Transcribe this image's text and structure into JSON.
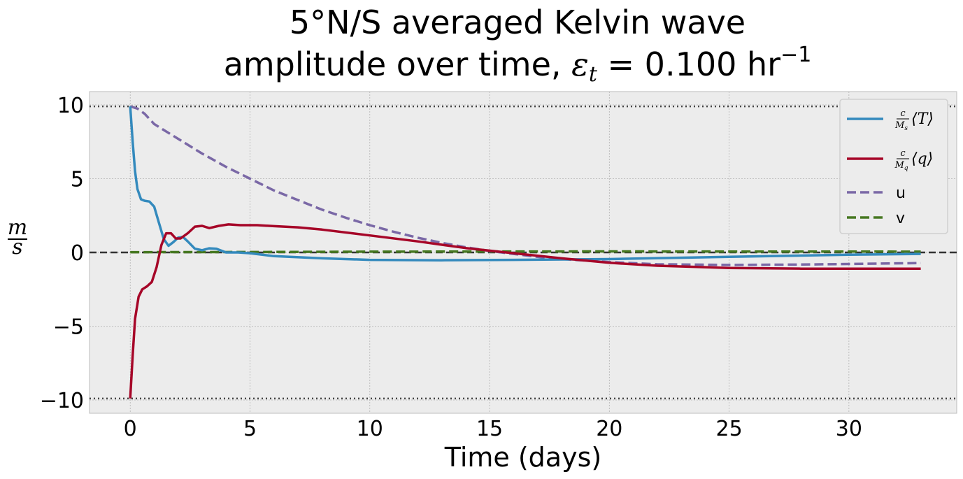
{
  "chart_data": {
    "type": "line",
    "title_line1": "5°N/S averaged Kelvin wave",
    "title_line2_prefix": "amplitude over time, ",
    "title_eps": "ε",
    "title_eps_sub": "t",
    "title_line2_value": " = 0.100 hr",
    "title_exp": "−1",
    "xlabel": "Time (days)",
    "ylabel_num": "m",
    "ylabel_den": "s",
    "xlim": [
      -1.7,
      34.5
    ],
    "ylim": [
      -10.9,
      10.9
    ],
    "xticks": [
      0,
      5,
      10,
      15,
      20,
      25,
      30
    ],
    "xtick_labels": [
      "0",
      "5",
      "10",
      "15",
      "20",
      "25",
      "30"
    ],
    "yticks": [
      -10,
      -5,
      0,
      5,
      10
    ],
    "ytick_labels": [
      "−10",
      "−5",
      "0",
      "5",
      "10"
    ],
    "grid": true,
    "legend_position": "upper right",
    "reference_lines": [
      {
        "y": 9.9,
        "style": "dotted",
        "color": "#444444"
      },
      {
        "y": -9.9,
        "style": "dotted",
        "color": "#444444"
      },
      {
        "y": 0,
        "style": "dashed",
        "color": "#333333"
      }
    ],
    "series": [
      {
        "name": "c/M_s ⟨T⟩",
        "legend_num": "c",
        "legend_den": "M",
        "legend_den_sub": "s",
        "legend_var": "T",
        "color": "#348abd",
        "style": "solid",
        "points": [
          [
            0,
            9.9
          ],
          [
            0.1,
            7.5
          ],
          [
            0.2,
            5.5
          ],
          [
            0.3,
            4.3
          ],
          [
            0.45,
            3.6
          ],
          [
            0.6,
            3.5
          ],
          [
            0.8,
            3.45
          ],
          [
            1.0,
            3.1
          ],
          [
            1.2,
            2.0
          ],
          [
            1.4,
            0.9
          ],
          [
            1.6,
            0.45
          ],
          [
            1.8,
            0.7
          ],
          [
            2.0,
            1.0
          ],
          [
            2.2,
            1.05
          ],
          [
            2.4,
            0.75
          ],
          [
            2.7,
            0.25
          ],
          [
            3.0,
            0.15
          ],
          [
            3.3,
            0.28
          ],
          [
            3.6,
            0.25
          ],
          [
            4.0,
            0.0
          ],
          [
            4.5,
            0.0
          ],
          [
            5.0,
            -0.05
          ],
          [
            6.0,
            -0.25
          ],
          [
            8.0,
            -0.4
          ],
          [
            10,
            -0.5
          ],
          [
            13,
            -0.53
          ],
          [
            16,
            -0.5
          ],
          [
            20,
            -0.45
          ],
          [
            25,
            -0.3
          ],
          [
            30,
            -0.15
          ],
          [
            33,
            -0.1
          ]
        ]
      },
      {
        "name": "c/M_q ⟨q⟩",
        "legend_num": "c",
        "legend_den": "M",
        "legend_den_sub": "q",
        "legend_var": "q",
        "color": "#a60628",
        "style": "solid",
        "points": [
          [
            0,
            -9.9
          ],
          [
            0.1,
            -7.0
          ],
          [
            0.2,
            -4.5
          ],
          [
            0.35,
            -3.0
          ],
          [
            0.5,
            -2.5
          ],
          [
            0.7,
            -2.3
          ],
          [
            0.9,
            -2.0
          ],
          [
            1.1,
            -1.0
          ],
          [
            1.3,
            0.5
          ],
          [
            1.5,
            1.3
          ],
          [
            1.7,
            1.3
          ],
          [
            1.9,
            0.95
          ],
          [
            2.1,
            0.95
          ],
          [
            2.4,
            1.3
          ],
          [
            2.7,
            1.75
          ],
          [
            3.0,
            1.8
          ],
          [
            3.3,
            1.65
          ],
          [
            3.7,
            1.8
          ],
          [
            4.1,
            1.9
          ],
          [
            4.6,
            1.85
          ],
          [
            5.3,
            1.85
          ],
          [
            6.0,
            1.78
          ],
          [
            7,
            1.7
          ],
          [
            8,
            1.55
          ],
          [
            10,
            1.15
          ],
          [
            12,
            0.75
          ],
          [
            14,
            0.3
          ],
          [
            16,
            -0.05
          ],
          [
            18,
            -0.4
          ],
          [
            20,
            -0.7
          ],
          [
            22,
            -0.9
          ],
          [
            25,
            -1.05
          ],
          [
            28,
            -1.1
          ],
          [
            30,
            -1.1
          ],
          [
            33,
            -1.1
          ]
        ]
      },
      {
        "name": "u",
        "color": "#7a68a6",
        "style": "dashed",
        "points": [
          [
            0,
            9.9
          ],
          [
            0.3,
            9.75
          ],
          [
            0.6,
            9.4
          ],
          [
            1.0,
            8.7
          ],
          [
            1.5,
            8.2
          ],
          [
            2,
            7.7
          ],
          [
            3,
            6.7
          ],
          [
            4,
            5.8
          ],
          [
            5,
            5.0
          ],
          [
            6,
            4.2
          ],
          [
            7,
            3.55
          ],
          [
            8,
            2.9
          ],
          [
            9,
            2.35
          ],
          [
            10,
            1.85
          ],
          [
            11,
            1.4
          ],
          [
            12,
            1.0
          ],
          [
            13,
            0.65
          ],
          [
            14,
            0.35
          ],
          [
            15,
            0.1
          ],
          [
            16,
            -0.1
          ],
          [
            17,
            -0.3
          ],
          [
            18,
            -0.45
          ],
          [
            20,
            -0.65
          ],
          [
            22,
            -0.8
          ],
          [
            25,
            -0.85
          ],
          [
            28,
            -0.82
          ],
          [
            30,
            -0.78
          ],
          [
            33,
            -0.72
          ]
        ]
      },
      {
        "name": "v",
        "color": "#467821",
        "style": "dashed",
        "points": [
          [
            0,
            0.02
          ],
          [
            5,
            0.03
          ],
          [
            10,
            0.05
          ],
          [
            15,
            0.06
          ],
          [
            20,
            0.07
          ],
          [
            25,
            0.06
          ],
          [
            30,
            0.06
          ],
          [
            33,
            0.05
          ]
        ]
      }
    ]
  }
}
